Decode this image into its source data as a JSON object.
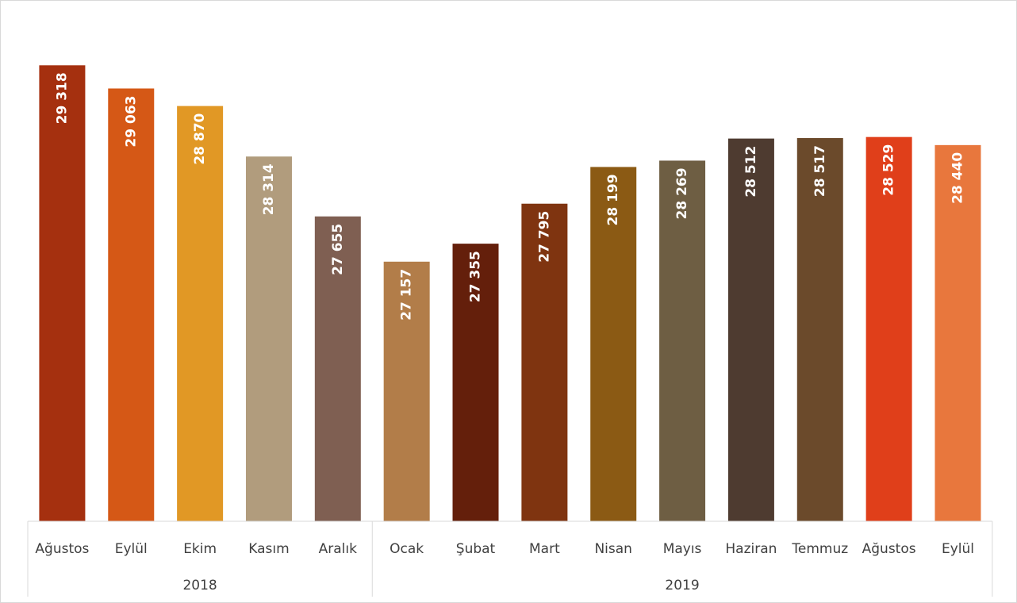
{
  "chart_data": {
    "type": "bar",
    "title": "",
    "xlabel": "",
    "ylabel": "",
    "categories": [
      "Ağustos",
      "Eylül",
      "Ekim",
      "Kasım",
      "Aralık",
      "Ocak",
      "Şubat",
      "Mart",
      "Nisan",
      "Mayıs",
      "Haziran",
      "Temmuz",
      "Ağustos",
      "Eylül"
    ],
    "values": [
      29318,
      29063,
      28870,
      28314,
      27655,
      27157,
      27355,
      27795,
      28199,
      28269,
      28512,
      28517,
      28529,
      28440
    ],
    "value_labels": [
      "29 318",
      "29 063",
      "28 870",
      "28 314",
      "27 655",
      "27 157",
      "27 355",
      "27 795",
      "28 199",
      "28 269",
      "28 512",
      "28 517",
      "28 529",
      "28 440"
    ],
    "groups": [
      {
        "label": "2018",
        "start": 0,
        "count": 5
      },
      {
        "label": "2019",
        "start": 5,
        "count": 9
      }
    ],
    "colors": [
      "#a5300f",
      "#d55816",
      "#e19825",
      "#b19c7d",
      "#7f5f52",
      "#b27d49",
      "#641f0b",
      "#7f3410",
      "#8b5a14",
      "#6e5e43",
      "#4e3b30",
      "#6b4a2b",
      "#e03f1a",
      "#e8773d"
    ],
    "ylim": [
      24300,
      29600
    ],
    "grid": false,
    "legend": "none",
    "value_labels_rotated": true
  }
}
